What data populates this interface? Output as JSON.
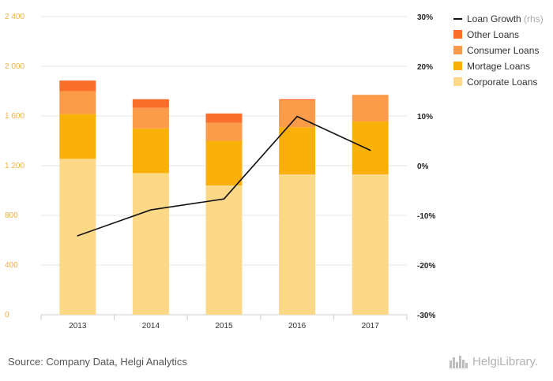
{
  "chart_data": {
    "type": "bar",
    "stacked": true,
    "categories": [
      "2013",
      "2014",
      "2015",
      "2016",
      "2017"
    ],
    "series": [
      {
        "name": "Corporate Loans",
        "values": [
          1255,
          1140,
          1040,
          1130,
          1130
        ],
        "color": "#fdd887"
      },
      {
        "name": "Mortage Loans",
        "values": [
          360,
          360,
          360,
          380,
          425
        ],
        "color": "#f9b10a"
      },
      {
        "name": "Consumer Loans",
        "values": [
          185,
          165,
          145,
          215,
          215
        ],
        "color": "#fc9b4a"
      },
      {
        "name": "Other Loans",
        "values": [
          85,
          70,
          75,
          10,
          0
        ],
        "color": "#fb6f2c"
      }
    ],
    "line_series": {
      "name": "Loan Growth",
      "suffix": "(rhs)",
      "axis": "right",
      "values": [
        -14.1,
        -8.9,
        -6.7,
        9.9,
        3.1
      ],
      "color": "#111111"
    },
    "ylim_left": [
      0,
      2400
    ],
    "yticks_left": [
      0,
      400,
      800,
      1200,
      1600,
      2000,
      2400
    ],
    "yticklabels_left": [
      "0",
      "400",
      "800",
      "1 200",
      "1 600",
      "2 000",
      "2 400"
    ],
    "ylim_right": [
      -30,
      30
    ],
    "yticks_right": [
      -30,
      -20,
      -10,
      0,
      10,
      20,
      30
    ],
    "yticklabels_right": [
      "-30%",
      "-20%",
      "-10%",
      "0%",
      "10%",
      "20%",
      "30%"
    ],
    "grid": true,
    "legend_position": "top-right",
    "legend_order": [
      "Loan Growth",
      "Other Loans",
      "Consumer Loans",
      "Mortage Loans",
      "Corporate Loans"
    ]
  },
  "footer": {
    "source": "Source: Company Data, Helgi Analytics",
    "logo_text": "HelgiLibrary."
  }
}
